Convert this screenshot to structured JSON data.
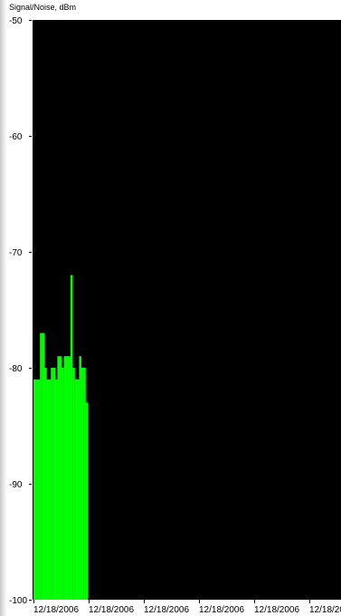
{
  "chart_data": {
    "type": "bar",
    "ylabel": "Signal/Noise, dBm",
    "ylim": [
      -100,
      -50
    ],
    "yticks": [
      -50,
      -60,
      -70,
      -80,
      -90,
      -100
    ],
    "ytick_labels": [
      "-50",
      "-60",
      "-70",
      "-80",
      "-90",
      "-100"
    ],
    "xtick_labels": [
      "12/18/2006",
      "12/18/2006",
      "12/18/2006",
      "12/18/2006",
      "12/18/2006",
      "12/18/2006",
      "12/18/2"
    ],
    "values": [
      -81,
      -81,
      -81,
      -77,
      -77,
      -80,
      -81,
      -81,
      -80,
      -80,
      -81,
      -79,
      -79,
      -80,
      -79,
      -79,
      -79,
      -72,
      -80,
      -81,
      -81,
      -79,
      -80,
      -80,
      -83
    ],
    "bar_color": "#00ff00",
    "background": "#000000",
    "grid": false
  }
}
